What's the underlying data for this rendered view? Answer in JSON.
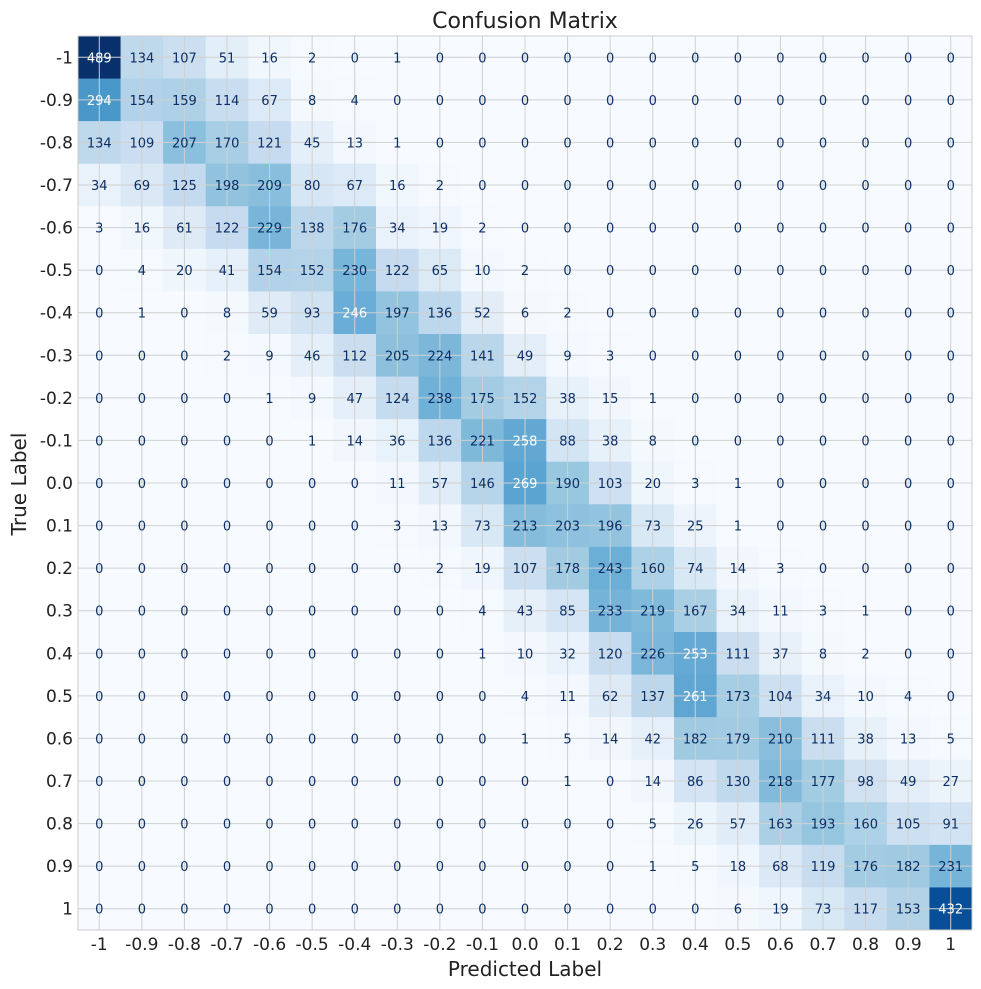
{
  "chart_data": {
    "type": "heatmap",
    "title": "Confusion Matrix",
    "xlabel": "Predicted Label",
    "ylabel": "True Label",
    "x_categories": [
      "-1",
      "-0.9",
      "-0.8",
      "-0.7",
      "-0.6",
      "-0.5",
      "-0.4",
      "-0.3",
      "-0.2",
      "-0.1",
      "0.0",
      "0.1",
      "0.2",
      "0.3",
      "0.4",
      "0.5",
      "0.6",
      "0.7",
      "0.8",
      "0.9",
      "1"
    ],
    "y_categories": [
      "-1",
      "-0.9",
      "-0.8",
      "-0.7",
      "-0.6",
      "-0.5",
      "-0.4",
      "-0.3",
      "-0.2",
      "-0.1",
      "0.0",
      "0.1",
      "0.2",
      "0.3",
      "0.4",
      "0.5",
      "0.6",
      "0.7",
      "0.8",
      "0.9",
      "1"
    ],
    "values": [
      [
        489,
        134,
        107,
        51,
        16,
        2,
        0,
        1,
        0,
        0,
        0,
        0,
        0,
        0,
        0,
        0,
        0,
        0,
        0,
        0,
        0
      ],
      [
        294,
        154,
        159,
        114,
        67,
        8,
        4,
        0,
        0,
        0,
        0,
        0,
        0,
        0,
        0,
        0,
        0,
        0,
        0,
        0,
        0
      ],
      [
        134,
        109,
        207,
        170,
        121,
        45,
        13,
        1,
        0,
        0,
        0,
        0,
        0,
        0,
        0,
        0,
        0,
        0,
        0,
        0,
        0
      ],
      [
        34,
        69,
        125,
        198,
        209,
        80,
        67,
        16,
        2,
        0,
        0,
        0,
        0,
        0,
        0,
        0,
        0,
        0,
        0,
        0,
        0
      ],
      [
        3,
        16,
        61,
        122,
        229,
        138,
        176,
        34,
        19,
        2,
        0,
        0,
        0,
        0,
        0,
        0,
        0,
        0,
        0,
        0,
        0
      ],
      [
        0,
        4,
        20,
        41,
        154,
        152,
        230,
        122,
        65,
        10,
        2,
        0,
        0,
        0,
        0,
        0,
        0,
        0,
        0,
        0,
        0
      ],
      [
        0,
        1,
        0,
        8,
        59,
        93,
        246,
        197,
        136,
        52,
        6,
        2,
        0,
        0,
        0,
        0,
        0,
        0,
        0,
        0,
        0
      ],
      [
        0,
        0,
        0,
        2,
        9,
        46,
        112,
        205,
        224,
        141,
        49,
        9,
        3,
        0,
        0,
        0,
        0,
        0,
        0,
        0,
        0
      ],
      [
        0,
        0,
        0,
        0,
        1,
        9,
        47,
        124,
        238,
        175,
        152,
        38,
        15,
        1,
        0,
        0,
        0,
        0,
        0,
        0,
        0
      ],
      [
        0,
        0,
        0,
        0,
        0,
        1,
        14,
        36,
        136,
        221,
        258,
        88,
        38,
        8,
        0,
        0,
        0,
        0,
        0,
        0,
        0
      ],
      [
        0,
        0,
        0,
        0,
        0,
        0,
        0,
        11,
        57,
        146,
        269,
        190,
        103,
        20,
        3,
        1,
        0,
        0,
        0,
        0,
        0
      ],
      [
        0,
        0,
        0,
        0,
        0,
        0,
        0,
        3,
        13,
        73,
        213,
        203,
        196,
        73,
        25,
        1,
        0,
        0,
        0,
        0,
        0
      ],
      [
        0,
        0,
        0,
        0,
        0,
        0,
        0,
        0,
        2,
        19,
        107,
        178,
        243,
        160,
        74,
        14,
        3,
        0,
        0,
        0,
        0
      ],
      [
        0,
        0,
        0,
        0,
        0,
        0,
        0,
        0,
        0,
        4,
        43,
        85,
        233,
        219,
        167,
        34,
        11,
        3,
        1,
        0,
        0
      ],
      [
        0,
        0,
        0,
        0,
        0,
        0,
        0,
        0,
        0,
        1,
        10,
        32,
        120,
        226,
        253,
        111,
        37,
        8,
        2,
        0,
        0
      ],
      [
        0,
        0,
        0,
        0,
        0,
        0,
        0,
        0,
        0,
        0,
        4,
        11,
        62,
        137,
        261,
        173,
        104,
        34,
        10,
        4,
        0
      ],
      [
        0,
        0,
        0,
        0,
        0,
        0,
        0,
        0,
        0,
        0,
        1,
        5,
        14,
        42,
        182,
        179,
        210,
        111,
        38,
        13,
        5
      ],
      [
        0,
        0,
        0,
        0,
        0,
        0,
        0,
        0,
        0,
        0,
        0,
        1,
        0,
        14,
        86,
        130,
        218,
        177,
        98,
        49,
        27
      ],
      [
        0,
        0,
        0,
        0,
        0,
        0,
        0,
        0,
        0,
        0,
        0,
        0,
        0,
        5,
        26,
        57,
        163,
        193,
        160,
        105,
        91
      ],
      [
        0,
        0,
        0,
        0,
        0,
        0,
        0,
        0,
        0,
        0,
        0,
        0,
        0,
        1,
        5,
        18,
        68,
        119,
        176,
        182,
        231
      ],
      [
        0,
        0,
        0,
        0,
        0,
        0,
        0,
        0,
        0,
        0,
        0,
        0,
        0,
        0,
        0,
        6,
        19,
        73,
        117,
        153,
        432
      ]
    ],
    "colormap": "Blues",
    "vmin": 0,
    "vmax": 489,
    "grid": true,
    "colors": {
      "text_dark": "#0b2f66",
      "text_light": "#ffffff",
      "grid": "#d0d0d0",
      "frame": "#cccccc"
    }
  }
}
